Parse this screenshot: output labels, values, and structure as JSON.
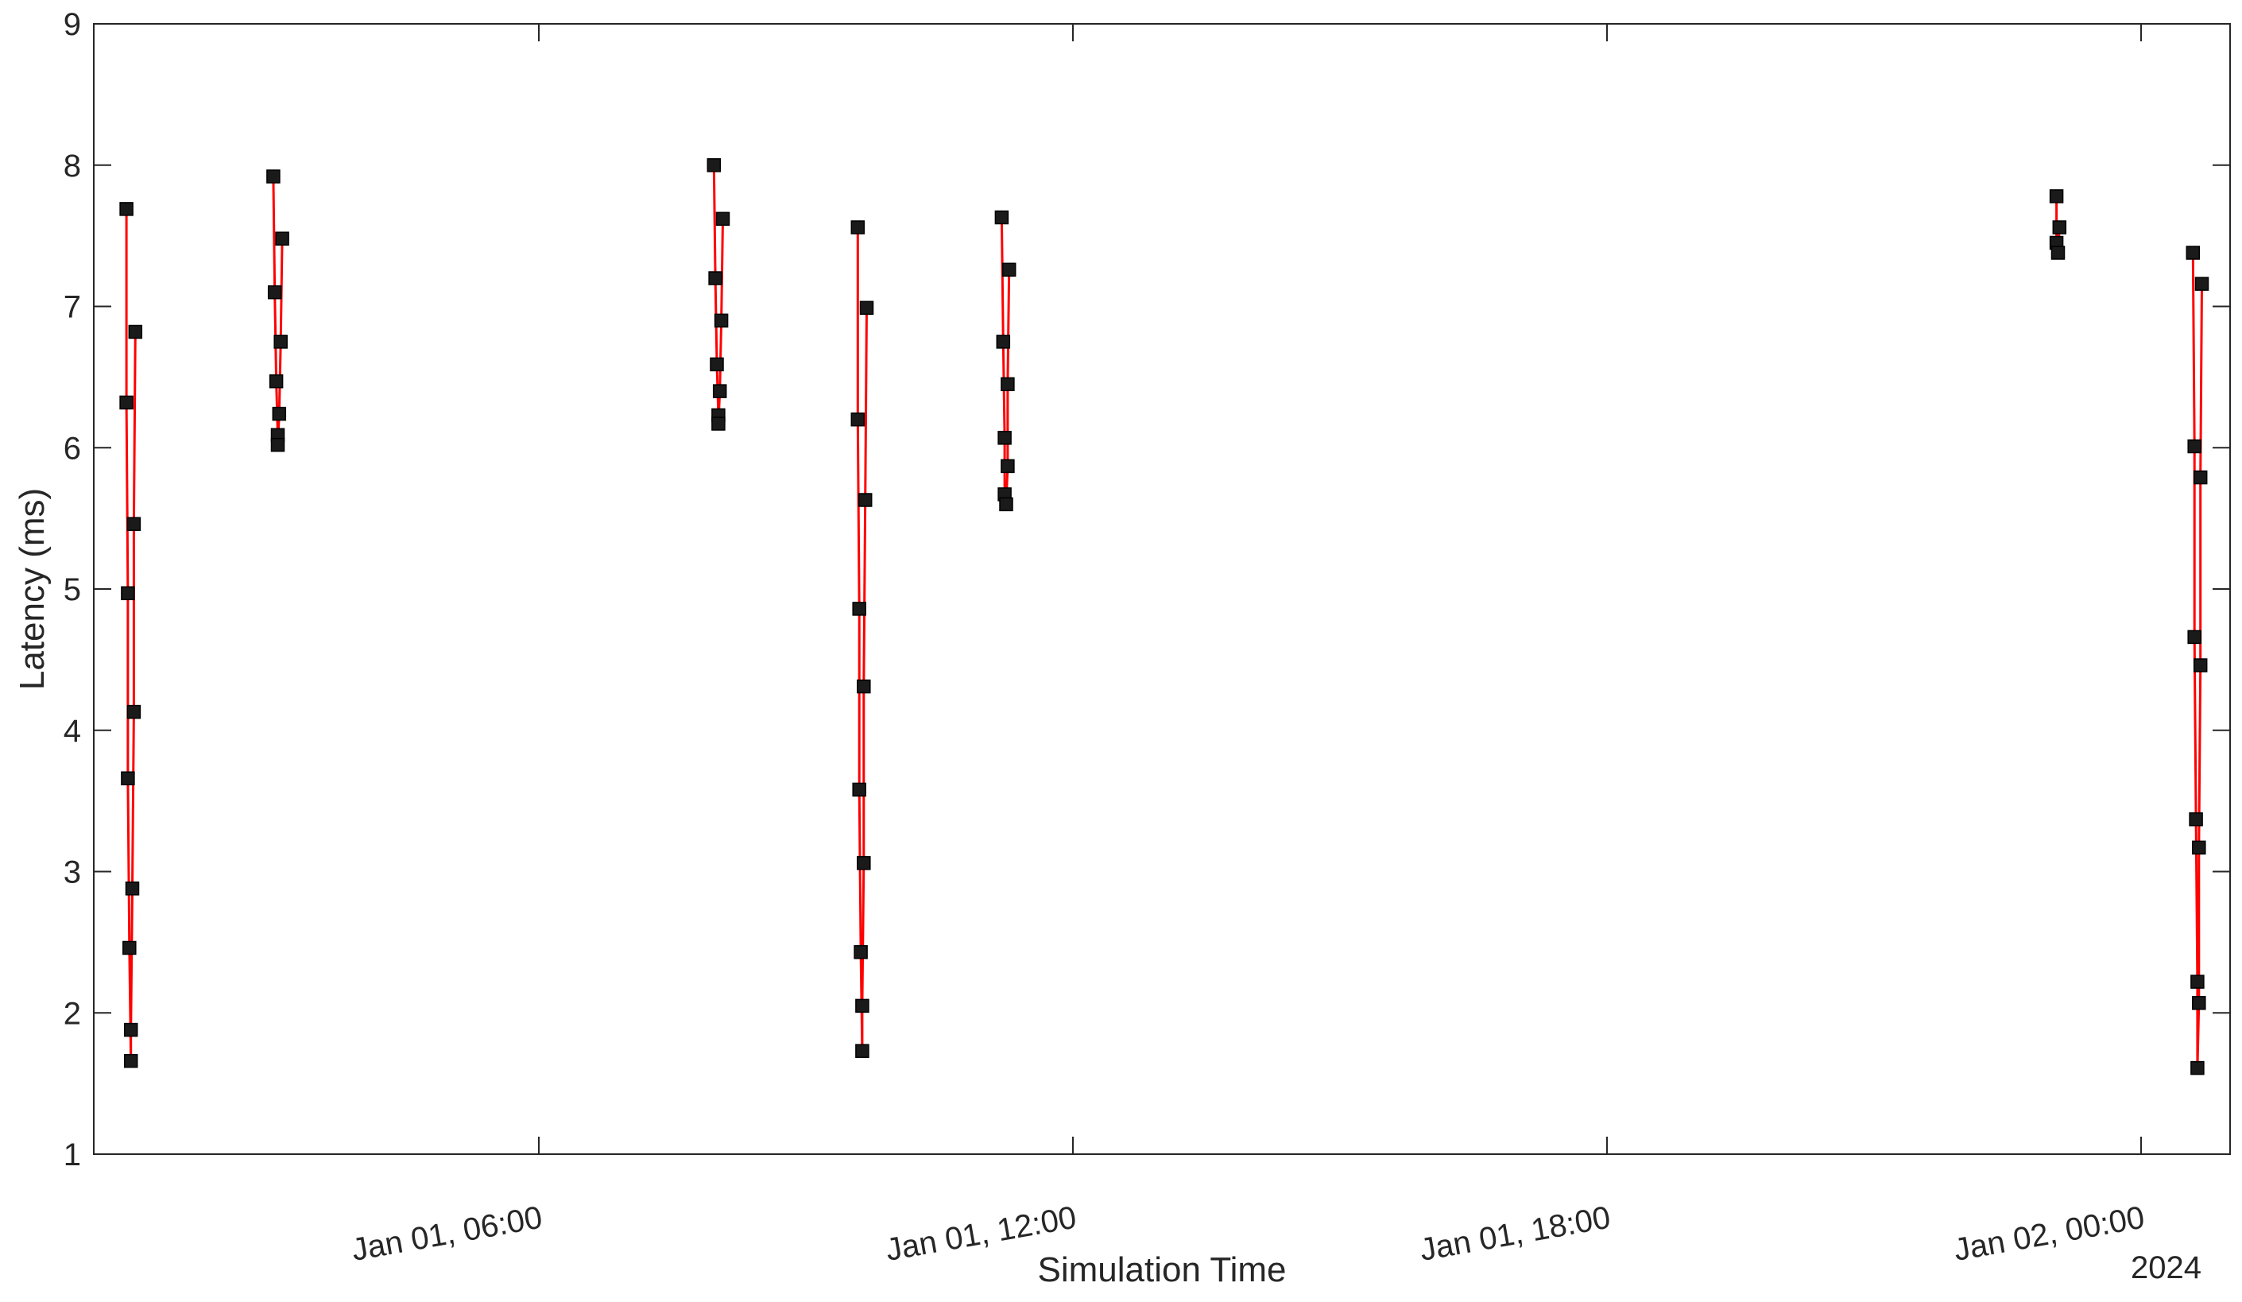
{
  "chart_data": {
    "type": "line",
    "title": "",
    "xlabel": "Simulation Time",
    "ylabel": "Latency (ms)",
    "x_secondary_label": "2024",
    "xlim": [
      "2024-01-01 01:00",
      "2024-01-02 01:00"
    ],
    "ylim": [
      1,
      9
    ],
    "yticks": [
      1,
      2,
      3,
      4,
      5,
      6,
      7,
      8,
      9
    ],
    "ytick_labels": [
      "1",
      "2",
      "3",
      "4",
      "5",
      "6",
      "7",
      "8",
      "9"
    ],
    "xticks": [
      "2024-01-01 06:00",
      "2024-01-01 12:00",
      "2024-01-01 18:00",
      "2024-01-02 00:00"
    ],
    "xtick_labels": [
      "Jan 01, 06:00",
      "Jan 01, 12:00",
      "Jan 01, 18:00",
      "Jan 02, 00:00"
    ],
    "grid": false,
    "legend": false,
    "line_color": "#ff0000",
    "marker_color": "#1a1a1a",
    "marker": "square",
    "segments": [
      {
        "x": [
          "2024-01-01 01:22",
          "2024-01-01 01:22",
          "2024-01-01 01:23",
          "2024-01-01 01:23",
          "2024-01-01 01:24",
          "2024-01-01 01:25",
          "2024-01-01 01:25",
          "2024-01-01 01:26",
          "2024-01-01 01:27",
          "2024-01-01 01:27",
          "2024-01-01 01:28"
        ],
        "y": [
          7.69,
          6.32,
          4.97,
          3.66,
          2.46,
          1.66,
          1.88,
          2.88,
          4.13,
          5.46,
          6.82
        ]
      },
      {
        "x": [
          "2024-01-01 03:01",
          "2024-01-01 03:02",
          "2024-01-01 03:03",
          "2024-01-01 03:04",
          "2024-01-01 03:04",
          "2024-01-01 03:05",
          "2024-01-01 03:06",
          "2024-01-01 03:07"
        ],
        "y": [
          7.92,
          7.1,
          6.47,
          6.09,
          6.02,
          6.24,
          6.75,
          7.48
        ]
      },
      {
        "x": [
          "2024-01-01 07:58",
          "2024-01-01 07:59",
          "2024-01-01 08:00",
          "2024-01-01 08:01",
          "2024-01-01 08:01",
          "2024-01-01 08:02",
          "2024-01-01 08:03",
          "2024-01-01 08:04"
        ],
        "y": [
          8.0,
          7.2,
          6.59,
          6.23,
          6.17,
          6.4,
          6.9,
          7.62
        ]
      },
      {
        "x": [
          "2024-01-01 09:35",
          "2024-01-01 09:35",
          "2024-01-01 09:36",
          "2024-01-01 09:36",
          "2024-01-01 09:37",
          "2024-01-01 09:38",
          "2024-01-01 09:38",
          "2024-01-01 09:39",
          "2024-01-01 09:39",
          "2024-01-01 09:40",
          "2024-01-01 09:41"
        ],
        "y": [
          7.56,
          6.2,
          4.86,
          3.58,
          2.43,
          1.73,
          2.05,
          3.06,
          4.31,
          5.63,
          6.99
        ]
      },
      {
        "x": [
          "2024-01-01 11:12",
          "2024-01-01 11:13",
          "2024-01-01 11:14",
          "2024-01-01 11:14",
          "2024-01-01 11:15",
          "2024-01-01 11:16",
          "2024-01-01 11:16",
          "2024-01-01 11:17"
        ],
        "y": [
          7.63,
          6.75,
          6.07,
          5.67,
          5.6,
          5.87,
          6.45,
          7.26
        ]
      },
      {
        "x": [
          "2024-01-01 23:03",
          "2024-01-01 23:03",
          "2024-01-01 23:04",
          "2024-01-01 23:05"
        ],
        "y": [
          7.78,
          7.45,
          7.38,
          7.56
        ]
      },
      {
        "x": [
          "2024-01-02 00:35",
          "2024-01-02 00:36",
          "2024-01-02 00:36",
          "2024-01-02 00:37",
          "2024-01-02 00:38",
          "2024-01-02 00:38",
          "2024-01-02 00:39",
          "2024-01-02 00:39",
          "2024-01-02 00:40",
          "2024-01-02 00:40",
          "2024-01-02 00:41"
        ],
        "y": [
          7.38,
          6.01,
          4.66,
          3.37,
          2.22,
          1.61,
          2.07,
          3.17,
          4.46,
          5.79,
          7.16
        ]
      }
    ]
  }
}
